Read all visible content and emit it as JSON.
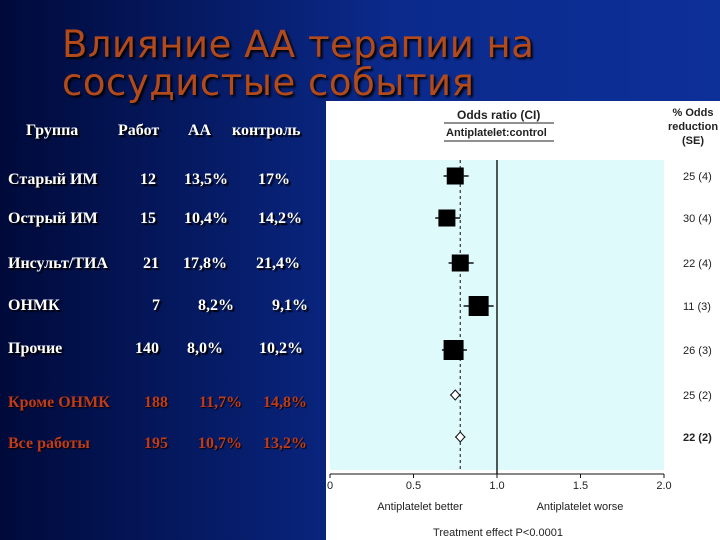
{
  "slide": {
    "title_line1": "Влияние АА терапии на",
    "title_line2": "сосудистые события"
  },
  "table": {
    "headers": [
      "Группа",
      "Работ",
      "АА",
      "контроль"
    ],
    "rows": [
      {
        "group": "Старый ИМ",
        "trials": "12",
        "aa": "13,5%",
        "control": "17%"
      },
      {
        "group": "Острый ИМ",
        "trials": "15",
        "aa": "10,4%",
        "control": "14,2%"
      },
      {
        "group": "Инсульт/ТИА",
        "trials": "21",
        "aa": "17,8%",
        "control": "21,4%"
      },
      {
        "group": "ОНМК",
        "trials": "7",
        "aa": "8,2%",
        "control": "9,1%"
      },
      {
        "group": "Прочие",
        "trials": "140",
        "aa": "8,0%",
        "control": "10,2%"
      }
    ],
    "summary_rows": [
      {
        "group": "Кроме ОНМК",
        "trials": "188",
        "aa": "11,7%",
        "control": "14,8%"
      },
      {
        "group": "Все работы",
        "trials": "195",
        "aa": "10,7%",
        "control": "13,2%"
      }
    ],
    "summary_color": "#c03b1c"
  },
  "chart_data": {
    "type": "scatter",
    "header_title": "Odds ratio (CI)",
    "header_subtitle": "Antiplatelet:control",
    "right_header": [
      "% Odds",
      "reduction",
      "(SE)"
    ],
    "x_ticks": [
      "0",
      "0.5",
      "1.0",
      "1.5",
      "2.0"
    ],
    "x_tick_values": [
      0,
      0.5,
      1.0,
      1.5,
      2.0
    ],
    "xlim": [
      0,
      2.0
    ],
    "xlabel_left": "Antiplatelet better",
    "xlabel_right": "Antiplatelet worse",
    "footer": "Treatment effect P<0.0001",
    "reference_line": 1.0,
    "overall_line": 0.78,
    "background_color": "#dffafb",
    "rows": [
      {
        "odds_ratio": 0.75,
        "ci": [
          0.68,
          0.83
        ],
        "marker": "square",
        "size": "medium",
        "reduction": "25 (4)",
        "bold": false
      },
      {
        "odds_ratio": 0.7,
        "ci": [
          0.63,
          0.78
        ],
        "marker": "square",
        "size": "medium",
        "reduction": "30 (4)",
        "bold": false
      },
      {
        "odds_ratio": 0.78,
        "ci": [
          0.71,
          0.86
        ],
        "marker": "square",
        "size": "medium",
        "reduction": "22 (4)",
        "bold": false
      },
      {
        "odds_ratio": 0.89,
        "ci": [
          0.8,
          0.98
        ],
        "marker": "square",
        "size": "large",
        "reduction": "11 (3)",
        "bold": false
      },
      {
        "odds_ratio": 0.74,
        "ci": [
          0.67,
          0.82
        ],
        "marker": "square",
        "size": "large",
        "reduction": "26 (3)",
        "bold": false
      },
      {
        "odds_ratio": 0.75,
        "ci": [
          0.72,
          0.78
        ],
        "marker": "diamond",
        "size": "small",
        "reduction": "25 (2)",
        "bold": false
      },
      {
        "odds_ratio": 0.78,
        "ci": [
          0.75,
          0.81
        ],
        "marker": "diamond",
        "size": "small",
        "reduction": "22 (2)",
        "bold": true
      }
    ]
  }
}
